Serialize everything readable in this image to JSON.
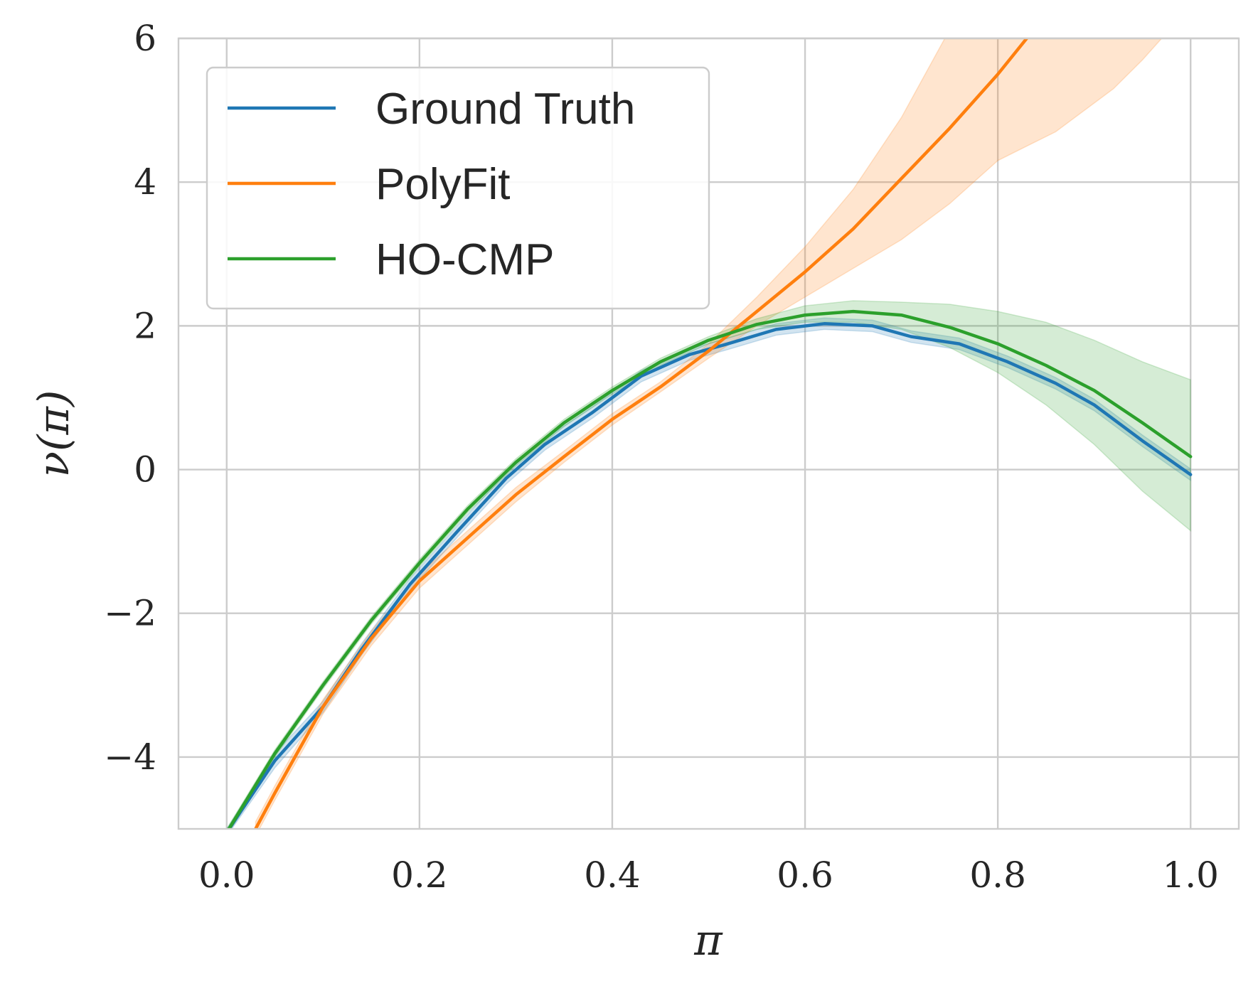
{
  "chart_data": {
    "type": "line",
    "xlabel": "π",
    "ylabel": "ν(π)",
    "xlim": [
      -0.05,
      1.05
    ],
    "ylim": [
      -5,
      6
    ],
    "xticks": [
      0.0,
      0.2,
      0.4,
      0.6,
      0.8,
      1.0
    ],
    "xtick_labels": [
      "0.0",
      "0.2",
      "0.4",
      "0.6",
      "0.8",
      "1.0"
    ],
    "yticks": [
      -4,
      -2,
      0,
      2,
      4,
      6
    ],
    "ytick_labels": [
      "−4",
      "−2",
      "0",
      "2",
      "4",
      "6"
    ],
    "grid": true,
    "legend_position": "top-left",
    "series": [
      {
        "name": "Ground Truth",
        "color": "#1f77b4",
        "x": [
          0.0,
          0.05,
          0.1,
          0.14,
          0.19,
          0.24,
          0.29,
          0.33,
          0.38,
          0.43,
          0.48,
          0.52,
          0.57,
          0.62,
          0.67,
          0.71,
          0.76,
          0.81,
          0.86,
          0.9,
          0.95,
          1.0
        ],
        "y": [
          -5.05,
          -4.05,
          -3.3,
          -2.5,
          -1.6,
          -0.85,
          -0.12,
          0.35,
          0.8,
          1.3,
          1.6,
          1.75,
          1.95,
          2.03,
          2.0,
          1.85,
          1.75,
          1.5,
          1.2,
          0.9,
          0.4,
          -0.07
        ],
        "band_lower": [
          -5.1,
          -4.15,
          -3.38,
          -2.58,
          -1.68,
          -0.93,
          -0.2,
          0.27,
          0.72,
          1.22,
          1.52,
          1.67,
          1.87,
          1.95,
          1.92,
          1.77,
          1.67,
          1.42,
          1.12,
          0.82,
          0.32,
          -0.15
        ],
        "band_upper": [
          -5.0,
          -3.95,
          -3.22,
          -2.42,
          -1.52,
          -0.77,
          -0.04,
          0.43,
          0.88,
          1.38,
          1.68,
          1.83,
          2.03,
          2.11,
          2.08,
          1.93,
          1.83,
          1.58,
          1.28,
          0.98,
          0.48,
          0.01
        ]
      },
      {
        "name": "PolyFit",
        "color": "#ff7f0e",
        "x": [
          0.03,
          0.05,
          0.1,
          0.15,
          0.2,
          0.25,
          0.3,
          0.35,
          0.4,
          0.45,
          0.5,
          0.55,
          0.6,
          0.65,
          0.7,
          0.75,
          0.8,
          0.83
        ],
        "y": [
          -5.0,
          -4.5,
          -3.3,
          -2.35,
          -1.55,
          -0.95,
          -0.35,
          0.18,
          0.7,
          1.15,
          1.65,
          2.2,
          2.75,
          3.35,
          4.05,
          4.75,
          5.5,
          6.0
        ],
        "band_lower": [
          -5.1,
          -4.6,
          -3.4,
          -2.45,
          -1.65,
          -1.05,
          -0.45,
          0.1,
          0.62,
          1.08,
          1.55,
          2.0,
          2.4,
          2.8,
          3.2,
          3.7,
          4.3,
          4.5,
          4.7,
          5.0,
          5.3,
          5.7,
          6.0
        ],
        "band_upper": [
          -4.9,
          -4.4,
          -3.2,
          -2.25,
          -1.45,
          -0.85,
          -0.25,
          0.26,
          0.78,
          1.22,
          1.75,
          2.4,
          3.1,
          3.9,
          4.9,
          6.0
        ],
        "band_lower_x": [
          0.03,
          0.05,
          0.1,
          0.15,
          0.2,
          0.25,
          0.3,
          0.35,
          0.4,
          0.45,
          0.5,
          0.55,
          0.6,
          0.65,
          0.7,
          0.75,
          0.8,
          0.83,
          0.86,
          0.89,
          0.92,
          0.95,
          0.97
        ],
        "band_upper_x": [
          0.03,
          0.05,
          0.1,
          0.15,
          0.2,
          0.25,
          0.3,
          0.35,
          0.4,
          0.45,
          0.5,
          0.55,
          0.6,
          0.65,
          0.7,
          0.745
        ]
      },
      {
        "name": "HO-CMP",
        "color": "#2ca02c",
        "x": [
          0.0,
          0.05,
          0.1,
          0.15,
          0.2,
          0.25,
          0.3,
          0.35,
          0.4,
          0.45,
          0.5,
          0.55,
          0.6,
          0.65,
          0.7,
          0.75,
          0.8,
          0.85,
          0.9,
          0.95,
          1.0
        ],
        "y": [
          -5.05,
          -3.95,
          -3.0,
          -2.1,
          -1.3,
          -0.55,
          0.1,
          0.65,
          1.1,
          1.5,
          1.8,
          2.02,
          2.15,
          2.2,
          2.15,
          1.98,
          1.75,
          1.45,
          1.1,
          0.65,
          0.18
        ],
        "band_lower": [
          -5.1,
          -4.0,
          -3.05,
          -2.15,
          -1.35,
          -0.6,
          0.05,
          0.6,
          1.05,
          1.45,
          1.75,
          1.95,
          2.05,
          2.05,
          1.95,
          1.7,
          1.35,
          0.9,
          0.35,
          -0.3,
          -0.85
        ],
        "band_upper": [
          -5.0,
          -3.9,
          -2.95,
          -2.05,
          -1.25,
          -0.5,
          0.15,
          0.7,
          1.15,
          1.55,
          1.85,
          2.1,
          2.28,
          2.35,
          2.33,
          2.3,
          2.2,
          2.05,
          1.8,
          1.5,
          1.25
        ]
      }
    ]
  }
}
